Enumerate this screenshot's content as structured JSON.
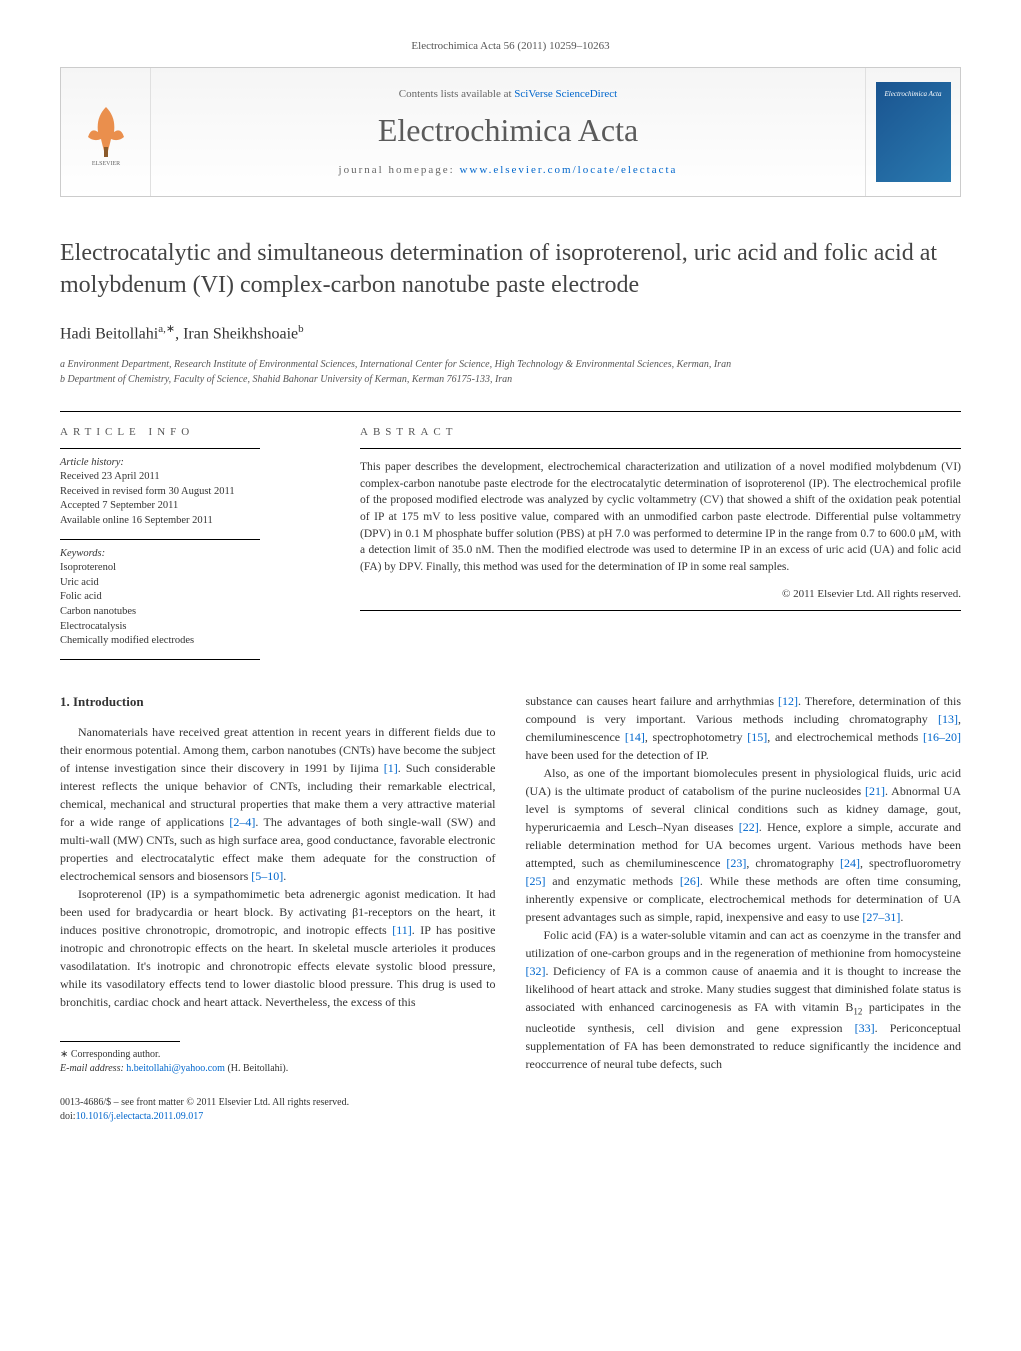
{
  "header_citation": "Electrochimica Acta 56 (2011) 10259–10263",
  "banner": {
    "contents_prefix": "Contents lists available at ",
    "contents_link": "SciVerse ScienceDirect",
    "journal_name": "Electrochimica Acta",
    "homepage_prefix": "journal homepage: ",
    "homepage_link": "www.elsevier.com/locate/electacta",
    "cover_text": "Electrochimica Acta"
  },
  "title": "Electrocatalytic and simultaneous determination of isoproterenol, uric acid and folic acid at molybdenum (VI) complex-carbon nanotube paste electrode",
  "authors_html": "Hadi Beitollahi",
  "author1_sup": "a,∗",
  "author2": ", Iran Sheikhshoaie",
  "author2_sup": "b",
  "affiliations": {
    "a": "a Environment Department, Research Institute of Environmental Sciences, International Center for Science, High Technology & Environmental Sciences, Kerman, Iran",
    "b": "b Department of Chemistry, Faculty of Science, Shahid Bahonar University of Kerman, Kerman 76175-133, Iran"
  },
  "article_info_heading": "ARTICLE INFO",
  "abstract_heading": "ABSTRACT",
  "history": {
    "label": "Article history:",
    "received": "Received 23 April 2011",
    "revised": "Received in revised form 30 August 2011",
    "accepted": "Accepted 7 September 2011",
    "online": "Available online 16 September 2011"
  },
  "keywords": {
    "label": "Keywords:",
    "items": [
      "Isoproterenol",
      "Uric acid",
      "Folic acid",
      "Carbon nanotubes",
      "Electrocatalysis",
      "Chemically modified electrodes"
    ]
  },
  "abstract": "This paper describes the development, electrochemical characterization and utilization of a novel modified molybdenum (VI) complex-carbon nanotube paste electrode for the electrocatalytic determination of isoproterenol (IP). The electrochemical profile of the proposed modified electrode was analyzed by cyclic voltammetry (CV) that showed a shift of the oxidation peak potential of IP at 175 mV to less positive value, compared with an unmodified carbon paste electrode. Differential pulse voltammetry (DPV) in 0.1 M phosphate buffer solution (PBS) at pH 7.0 was performed to determine IP in the range from 0.7 to 600.0 μM, with a detection limit of 35.0 nM. Then the modified electrode was used to determine IP in an excess of uric acid (UA) and folic acid (FA) by DPV. Finally, this method was used for the determination of IP in some real samples.",
  "copyright": "© 2011 Elsevier Ltd. All rights reserved.",
  "intro_heading": "1. Introduction",
  "body": {
    "col1_p1": "Nanomaterials have received great attention in recent years in different fields due to their enormous potential. Among them, carbon nanotubes (CNTs) have become the subject of intense investigation since their discovery in 1991 by Iijima [1]. Such considerable interest reflects the unique behavior of CNTs, including their remarkable electrical, chemical, mechanical and structural properties that make them a very attractive material for a wide range of applications [2–4]. The advantages of both single-wall (SW) and multi-wall (MW) CNTs, such as high surface area, good conductance, favorable electronic properties and electrocatalytic effect make them adequate for the construction of electrochemical sensors and biosensors [5–10].",
    "col1_p2": "Isoproterenol (IP) is a sympathomimetic beta adrenergic agonist medication. It had been used for bradycardia or heart block. By activating β1-receptors on the heart, it induces positive chronotropic, dromotropic, and inotropic effects [11]. IP has positive inotropic and chronotropic effects on the heart. In skeletal muscle arterioles it produces vasodilatation. It's inotropic and chronotropic effects elevate systolic blood pressure, while its vasodilatory effects tend to lower diastolic blood pressure. This drug is used to bronchitis, cardiac chock and heart attack. Nevertheless, the excess of this",
    "col2_p1": "substance can causes heart failure and arrhythmias [12]. Therefore, determination of this compound is very important. Various methods including chromatography [13], chemiluminescence [14], spectrophotometry [15], and electrochemical methods [16–20] have been used for the detection of IP.",
    "col2_p2": "Also, as one of the important biomolecules present in physiological fluids, uric acid (UA) is the ultimate product of catabolism of the purine nucleosides [21]. Abnormal UA level is symptoms of several clinical conditions such as kidney damage, gout, hyperuricaemia and Lesch–Nyan diseases [22]. Hence, explore a simple, accurate and reliable determination method for UA becomes urgent. Various methods have been attempted, such as chemiluminescence [23], chromatography [24], spectrofluorometry [25] and enzymatic methods [26]. While these methods are often time consuming, inherently expensive or complicate, electrochemical methods for determination of UA present advantages such as simple, rapid, inexpensive and easy to use [27–31].",
    "col2_p3_a": "Folic acid (FA) is a water-soluble vitamin and can act as coenzyme in the transfer and utilization of one-carbon groups and in the regeneration of methionine from homocysteine [32]. Deficiency of FA is a common cause of anaemia and it is thought to increase the likelihood of heart attack and stroke. Many studies suggest that diminished folate status is associated with enhanced carcinogenesis as FA with vitamin B",
    "col2_p3_b": " participates in the nucleotide synthesis, cell division and gene expression [33]. Periconceptual supplementation of FA has been demonstrated to reduce significantly the incidence and reoccurrence of neural tube defects, such"
  },
  "footnotes": {
    "corresponding": "∗ Corresponding author.",
    "email_label": "E-mail address: ",
    "email": "h.beitollahi@yahoo.com",
    "email_suffix": " (H. Beitollahi)."
  },
  "bottom_meta": {
    "line1": "0013-4686/$ – see front matter © 2011 Elsevier Ltd. All rights reserved.",
    "doi_prefix": "doi:",
    "doi": "10.1016/j.electacta.2011.09.017"
  },
  "colors": {
    "link": "#0066cc",
    "text": "#333333",
    "heading_gray": "#555555",
    "cover_bg_start": "#1a5490",
    "cover_bg_end": "#2a7ab0"
  }
}
